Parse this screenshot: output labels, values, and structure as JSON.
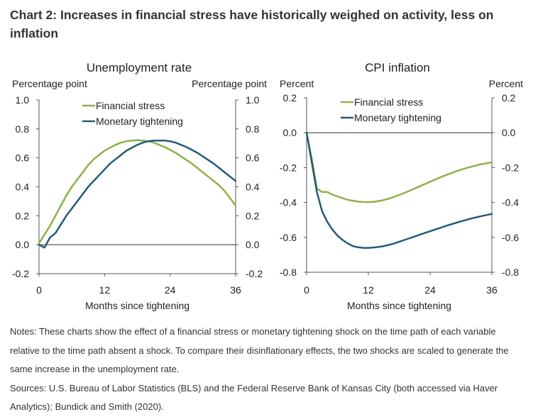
{
  "title": "Chart 2: Increases in financial stress have historically weighed on activity, less on inflation",
  "notes": "Notes: These charts show the effect of a financial stress or monetary tightening shock on the time path of each variable relative to the time path absent a shock. To compare their disinflationary effects, the two shocks are scaled to generate the same increase in the unemployment rate.",
  "sources": "Sources: U.S. Bureau of Labor Statistics (BLS) and the Federal Reserve Bank of Kansas City (both accessed via Haver Analytics); Bundick and Smith (2020).",
  "colors": {
    "financial_stress": "#8db14a",
    "monetary_tightening": "#245a7a"
  },
  "chart_data": [
    {
      "type": "line",
      "title": "Unemployment rate",
      "ylabel_left": "Percentage point",
      "ylabel_right": "Percentage point",
      "xlabel": "Months since tightening",
      "xlim": [
        0,
        36
      ],
      "ylim": [
        -0.2,
        1.0
      ],
      "xticks": [
        0,
        12,
        24,
        36
      ],
      "yticks": [
        -0.2,
        0.0,
        0.2,
        0.4,
        0.6,
        0.8,
        1.0
      ],
      "ytick_labels": [
        "-0.2",
        "0.0",
        "0.2",
        "0.4",
        "0.6",
        "0.8",
        "1.0"
      ],
      "legend": "top-left",
      "x": [
        0,
        1,
        2,
        3,
        4,
        5,
        6,
        7,
        8,
        9,
        10,
        11,
        12,
        13,
        14,
        15,
        16,
        17,
        18,
        19,
        20,
        21,
        22,
        23,
        24,
        25,
        26,
        27,
        28,
        29,
        30,
        31,
        32,
        33,
        34,
        35,
        36
      ],
      "series": [
        {
          "name": "Financial stress",
          "color_key": "financial_stress",
          "values": [
            0.01,
            0.07,
            0.13,
            0.2,
            0.27,
            0.34,
            0.4,
            0.45,
            0.5,
            0.55,
            0.59,
            0.62,
            0.65,
            0.67,
            0.69,
            0.705,
            0.715,
            0.72,
            0.722,
            0.72,
            0.715,
            0.705,
            0.69,
            0.675,
            0.655,
            0.635,
            0.61,
            0.585,
            0.56,
            0.53,
            0.5,
            0.47,
            0.44,
            0.41,
            0.37,
            0.32,
            0.27
          ]
        },
        {
          "name": "Monetary tightening",
          "color_key": "monetary_tightening",
          "values": [
            0.0,
            -0.02,
            0.05,
            0.08,
            0.14,
            0.2,
            0.25,
            0.3,
            0.35,
            0.4,
            0.44,
            0.48,
            0.52,
            0.56,
            0.59,
            0.62,
            0.65,
            0.67,
            0.69,
            0.705,
            0.715,
            0.72,
            0.72,
            0.72,
            0.715,
            0.705,
            0.69,
            0.675,
            0.655,
            0.635,
            0.61,
            0.585,
            0.56,
            0.53,
            0.5,
            0.47,
            0.44
          ]
        }
      ]
    },
    {
      "type": "line",
      "title": "CPI inflation",
      "ylabel_left": "Percent",
      "ylabel_right": "Percent",
      "xlabel": "Months since tightening",
      "xlim": [
        0,
        36
      ],
      "ylim": [
        -0.8,
        0.2
      ],
      "xticks": [
        0,
        12,
        24,
        36
      ],
      "yticks": [
        -0.8,
        -0.6,
        -0.4,
        -0.2,
        0.0,
        0.2
      ],
      "ytick_labels": [
        "-0.8",
        "-0.6",
        "-0.4",
        "-0.2",
        "0.0",
        "0.2"
      ],
      "legend": "top-center",
      "x": [
        0,
        1,
        2,
        3,
        4,
        5,
        6,
        7,
        8,
        9,
        10,
        11,
        12,
        13,
        14,
        15,
        16,
        17,
        18,
        19,
        20,
        21,
        22,
        23,
        24,
        25,
        26,
        27,
        28,
        29,
        30,
        31,
        32,
        33,
        34,
        35,
        36
      ],
      "series": [
        {
          "name": "Financial stress",
          "color_key": "financial_stress",
          "values": [
            0.0,
            -0.15,
            -0.32,
            -0.34,
            -0.34,
            -0.355,
            -0.365,
            -0.375,
            -0.385,
            -0.39,
            -0.395,
            -0.397,
            -0.398,
            -0.396,
            -0.392,
            -0.386,
            -0.378,
            -0.368,
            -0.357,
            -0.345,
            -0.333,
            -0.32,
            -0.307,
            -0.294,
            -0.281,
            -0.268,
            -0.256,
            -0.244,
            -0.233,
            -0.222,
            -0.212,
            -0.203,
            -0.195,
            -0.187,
            -0.18,
            -0.175,
            -0.17
          ]
        },
        {
          "name": "Monetary tightening",
          "color_key": "monetary_tightening",
          "values": [
            0.0,
            -0.17,
            -0.34,
            -0.45,
            -0.51,
            -0.555,
            -0.59,
            -0.615,
            -0.635,
            -0.65,
            -0.657,
            -0.66,
            -0.66,
            -0.658,
            -0.655,
            -0.65,
            -0.643,
            -0.635,
            -0.625,
            -0.615,
            -0.605,
            -0.595,
            -0.585,
            -0.575,
            -0.565,
            -0.555,
            -0.545,
            -0.535,
            -0.526,
            -0.517,
            -0.508,
            -0.5,
            -0.492,
            -0.485,
            -0.478,
            -0.472,
            -0.466
          ]
        }
      ]
    }
  ]
}
